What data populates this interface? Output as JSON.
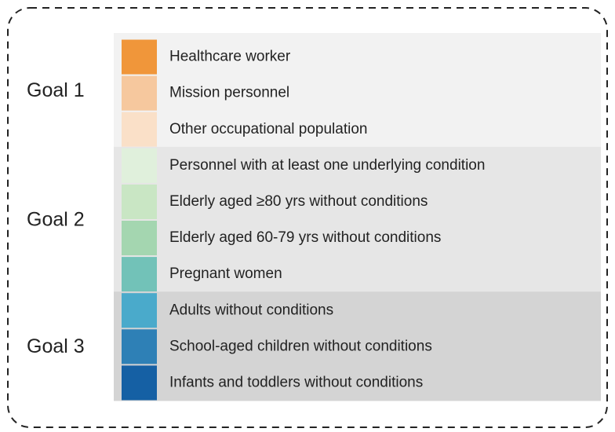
{
  "groups": [
    {
      "label": "Goal 1",
      "items": [
        {
          "label": "Healthcare worker",
          "color": "#f0963a"
        },
        {
          "label": "Mission personnel",
          "color": "#f6c89e"
        },
        {
          "label": "Other occupational population",
          "color": "#fae0c8"
        }
      ]
    },
    {
      "label": "Goal 2",
      "items": [
        {
          "label": "Personnel with at least one underlying condition",
          "color": "#e0f0dc"
        },
        {
          "label": "Elderly aged ≥80 yrs without conditions",
          "color": "#c9e6c4"
        },
        {
          "label": "Elderly aged 60-79 yrs without conditions",
          "color": "#a4d6b0"
        },
        {
          "label": "Pregnant women",
          "color": "#72c2b8"
        }
      ]
    },
    {
      "label": "Goal 3",
      "items": [
        {
          "label": "Adults without conditions",
          "color": "#4aaacb"
        },
        {
          "label": "School-aged children without conditions",
          "color": "#2e80b6"
        },
        {
          "label": "Infants and toddlers without conditions",
          "color": "#1560a4"
        }
      ]
    }
  ]
}
